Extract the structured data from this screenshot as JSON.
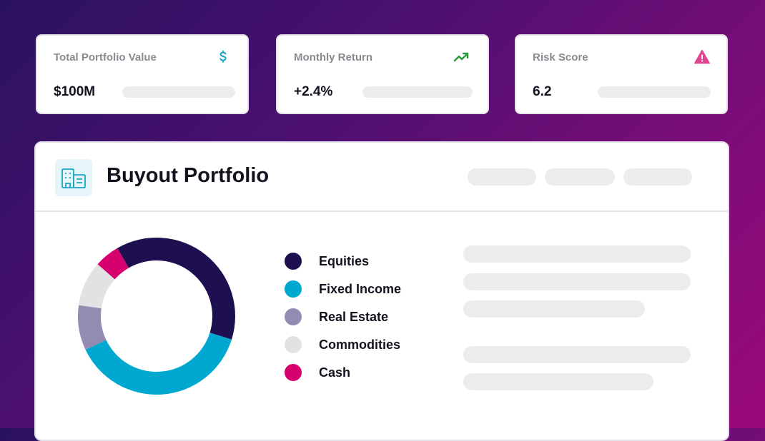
{
  "stats": [
    {
      "label": "Total Portfolio Value",
      "value": "$100M",
      "icon": "dollar-icon",
      "icon_color": "#1aa6c9"
    },
    {
      "label": "Monthly Return",
      "value": "+2.4%",
      "icon": "trending-up-icon",
      "icon_color": "#2a9a3c"
    },
    {
      "label": "Risk Score",
      "value": "6.2",
      "icon": "warning-icon",
      "icon_color": "#e0458f"
    }
  ],
  "portfolio": {
    "title": "Buyout Portfolio",
    "icon": "building-icon"
  },
  "chart_data": {
    "type": "pie",
    "categories": [
      "Equities",
      "Fixed Income",
      "Real Estate",
      "Commodities",
      "Cash"
    ],
    "values": [
      37,
      37,
      9,
      9,
      5
    ],
    "colors": [
      "#1e1050",
      "#00a8cf",
      "#948cb0",
      "#e2e2e4",
      "#d6006f"
    ],
    "title": "",
    "legend_position": "right"
  }
}
